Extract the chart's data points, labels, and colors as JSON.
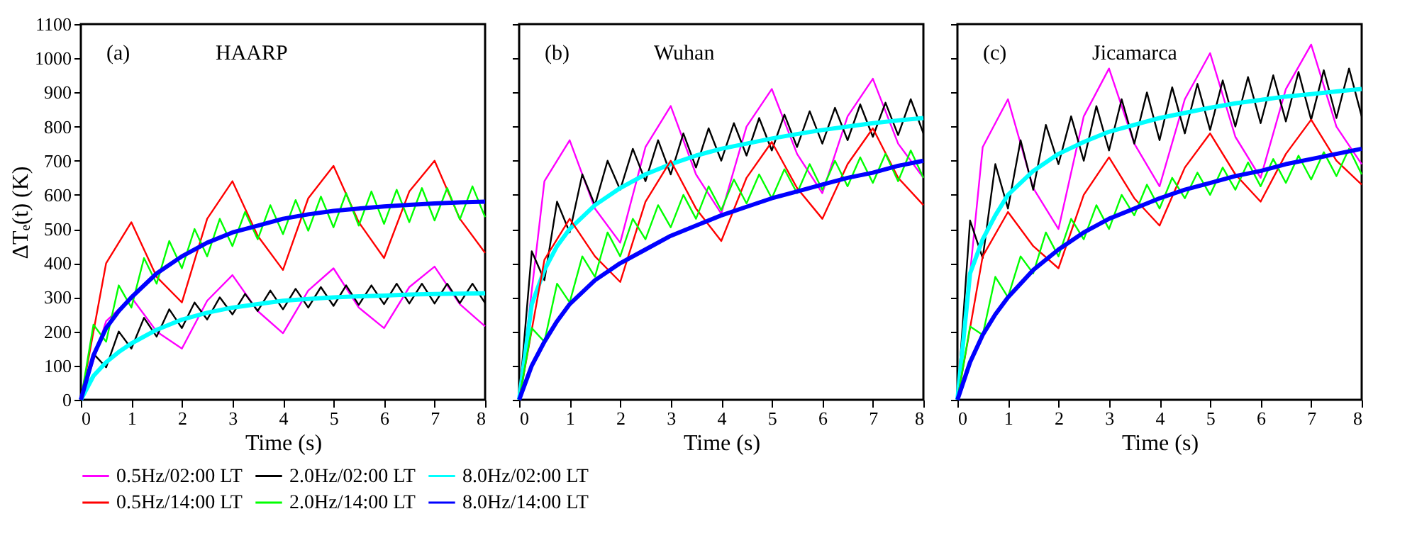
{
  "chart_data": [
    {
      "type": "line",
      "annotations": [
        "(a)",
        "HAARP"
      ],
      "xlabel": "Time (s)",
      "ylabel": "ΔTₑ(t) (K)",
      "xlim": [
        0,
        8
      ],
      "xticks": [
        0,
        1,
        2,
        3,
        4,
        5,
        6,
        7,
        8
      ],
      "ylim": [
        0,
        1100
      ],
      "yticks": [
        0,
        100,
        200,
        300,
        400,
        500,
        600,
        700,
        800,
        900,
        1000,
        1100
      ],
      "grid": false,
      "legend": "bottom right",
      "series": [
        {
          "name": "0.5Hz/02:00 LT",
          "color": "#ff00ff",
          "x": [
            0,
            0.5,
            1,
            1.5,
            2,
            2.5,
            3,
            3.5,
            4,
            4.5,
            5,
            5.5,
            6,
            6.5,
            7,
            7.5,
            8
          ],
          "values": [
            0,
            230,
            300,
            200,
            150,
            290,
            365,
            260,
            195,
            320,
            385,
            270,
            210,
            330,
            390,
            280,
            215
          ]
        },
        {
          "name": "2.0Hz/02:00 LT",
          "color": "#000000",
          "x": [
            0,
            0.25,
            0.5,
            0.75,
            1,
            1.25,
            1.5,
            1.75,
            2,
            2.25,
            2.5,
            2.75,
            3,
            3.25,
            3.5,
            3.75,
            4,
            4.25,
            4.5,
            4.75,
            5,
            5.25,
            5.5,
            5.75,
            6,
            6.25,
            6.5,
            6.75,
            7,
            7.25,
            7.5,
            7.75,
            8
          ],
          "values": [
            0,
            135,
            95,
            200,
            150,
            240,
            185,
            265,
            210,
            285,
            235,
            300,
            250,
            310,
            260,
            320,
            265,
            325,
            270,
            330,
            275,
            335,
            278,
            335,
            280,
            340,
            282,
            340,
            282,
            340,
            283,
            340,
            283
          ]
        },
        {
          "name": "8.0Hz/02:00 LT",
          "color": "#00ffff",
          "x": [
            0,
            0.25,
            0.5,
            0.75,
            1,
            1.5,
            2,
            2.5,
            3,
            3.5,
            4,
            4.5,
            5,
            5.5,
            6,
            6.5,
            7,
            7.5,
            8
          ],
          "values": [
            0,
            70,
            110,
            140,
            165,
            205,
            235,
            255,
            270,
            280,
            290,
            295,
            300,
            303,
            305,
            308,
            310,
            311,
            312
          ]
        },
        {
          "name": "0.5Hz/14:00 LT",
          "color": "#ff0000",
          "x": [
            0,
            0.5,
            1,
            1.5,
            2,
            2.5,
            3,
            3.5,
            4,
            4.5,
            5,
            5.5,
            6,
            6.5,
            7,
            7.5,
            8
          ],
          "values": [
            0,
            400,
            520,
            360,
            285,
            530,
            640,
            480,
            380,
            590,
            685,
            520,
            415,
            610,
            700,
            530,
            430
          ]
        },
        {
          "name": "2.0Hz/14:00 LT",
          "color": "#00ff00",
          "x": [
            0,
            0.25,
            0.5,
            0.75,
            1,
            1.25,
            1.5,
            1.75,
            2,
            2.25,
            2.5,
            2.75,
            3,
            3.25,
            3.5,
            3.75,
            4,
            4.25,
            4.5,
            4.75,
            5,
            5.25,
            5.5,
            5.75,
            6,
            6.25,
            6.5,
            6.75,
            7,
            7.25,
            7.5,
            7.75,
            8
          ],
          "values": [
            0,
            220,
            170,
            335,
            270,
            415,
            340,
            465,
            385,
            500,
            420,
            530,
            450,
            550,
            470,
            570,
            485,
            585,
            495,
            595,
            505,
            605,
            510,
            610,
            515,
            615,
            520,
            620,
            525,
            620,
            528,
            625,
            535
          ]
        },
        {
          "name": "8.0Hz/14:00 LT",
          "color": "#0000ff",
          "x": [
            0,
            0.25,
            0.5,
            0.75,
            1,
            1.5,
            2,
            2.5,
            3,
            3.5,
            4,
            4.5,
            5,
            5.5,
            6,
            6.5,
            7,
            7.5,
            8
          ],
          "values": [
            0,
            130,
            210,
            260,
            300,
            370,
            420,
            460,
            490,
            510,
            530,
            543,
            553,
            560,
            566,
            571,
            575,
            578,
            580
          ]
        }
      ]
    },
    {
      "type": "line",
      "annotations": [
        "(b)",
        "Wuhan"
      ],
      "xlabel": "Time (s)",
      "xlim": [
        0,
        8
      ],
      "xticks": [
        0,
        1,
        2,
        3,
        4,
        5,
        6,
        7,
        8
      ],
      "ylim": [
        0,
        1100
      ],
      "yticks": [
        0,
        100,
        200,
        300,
        400,
        500,
        600,
        700,
        800,
        900,
        1000,
        1100
      ],
      "tick_labels": "x",
      "grid": false,
      "legend": "bottom right",
      "series": [
        {
          "name": "0.5Hz/02:00 LT",
          "color": "#ff00ff",
          "x": [
            0,
            0.5,
            1,
            1.5,
            2,
            2.5,
            3,
            3.5,
            4,
            4.5,
            5,
            5.5,
            6,
            6.5,
            7,
            7.5,
            8
          ],
          "values": [
            0,
            640,
            760,
            560,
            460,
            740,
            860,
            660,
            545,
            800,
            910,
            720,
            605,
            830,
            940,
            750,
            650
          ]
        },
        {
          "name": "2.0Hz/02:00 LT",
          "color": "#000000",
          "x": [
            0,
            0.25,
            0.5,
            0.75,
            1,
            1.25,
            1.5,
            1.75,
            2,
            2.25,
            2.5,
            2.75,
            3,
            3.25,
            3.5,
            3.75,
            4,
            4.25,
            4.5,
            4.75,
            5,
            5.25,
            5.5,
            5.75,
            6,
            6.25,
            6.5,
            6.75,
            7,
            7.25,
            7.5,
            7.75,
            8
          ],
          "values": [
            0,
            435,
            350,
            580,
            490,
            660,
            570,
            700,
            615,
            735,
            640,
            760,
            660,
            780,
            680,
            795,
            700,
            810,
            715,
            825,
            730,
            835,
            740,
            845,
            750,
            855,
            760,
            865,
            770,
            870,
            775,
            880,
            780
          ]
        },
        {
          "name": "8.0Hz/02:00 LT",
          "color": "#00ffff",
          "x": [
            0,
            0.25,
            0.5,
            0.75,
            1,
            1.5,
            2,
            2.5,
            3,
            3.5,
            4,
            4.5,
            5,
            5.5,
            6,
            6.5,
            7,
            7.5,
            8
          ],
          "values": [
            0,
            280,
            380,
            450,
            500,
            570,
            620,
            660,
            690,
            715,
            735,
            750,
            765,
            778,
            790,
            800,
            810,
            818,
            825
          ]
        },
        {
          "name": "0.5Hz/14:00 LT",
          "color": "#ff0000",
          "x": [
            0,
            0.5,
            1,
            1.5,
            2,
            2.5,
            3,
            3.5,
            4,
            4.5,
            5,
            5.5,
            6,
            6.5,
            7,
            7.5,
            8
          ],
          "values": [
            0,
            410,
            530,
            420,
            345,
            580,
            700,
            560,
            465,
            650,
            755,
            620,
            530,
            690,
            795,
            650,
            570
          ]
        },
        {
          "name": "2.0Hz/14:00 LT",
          "color": "#00ff00",
          "x": [
            0,
            0.25,
            0.5,
            0.75,
            1,
            1.25,
            1.5,
            1.75,
            2,
            2.25,
            2.5,
            2.75,
            3,
            3.25,
            3.5,
            3.75,
            4,
            4.25,
            4.5,
            4.75,
            5,
            5.25,
            5.5,
            5.75,
            6,
            6.25,
            6.5,
            6.75,
            7,
            7.25,
            7.5,
            7.75,
            8
          ],
          "values": [
            0,
            210,
            170,
            340,
            285,
            420,
            360,
            490,
            420,
            530,
            470,
            570,
            505,
            600,
            530,
            625,
            555,
            645,
            575,
            660,
            590,
            675,
            605,
            690,
            615,
            700,
            625,
            710,
            635,
            720,
            640,
            730,
            650
          ]
        },
        {
          "name": "8.0Hz/14:00 LT",
          "color": "#0000ff",
          "x": [
            0,
            0.25,
            0.5,
            0.75,
            1,
            1.5,
            2,
            2.5,
            3,
            3.5,
            4,
            4.5,
            5,
            5.5,
            6,
            6.5,
            7,
            7.5,
            8
          ],
          "values": [
            0,
            100,
            170,
            230,
            280,
            350,
            400,
            440,
            480,
            510,
            540,
            565,
            590,
            610,
            630,
            650,
            665,
            685,
            700
          ]
        }
      ]
    },
    {
      "type": "line",
      "annotations": [
        "(c)",
        "Jicamarca"
      ],
      "xlabel": "Time (s)",
      "xlim": [
        0,
        8
      ],
      "xticks": [
        0,
        1,
        2,
        3,
        4,
        5,
        6,
        7,
        8
      ],
      "ylim": [
        0,
        1100
      ],
      "yticks": [
        0,
        100,
        200,
        300,
        400,
        500,
        600,
        700,
        800,
        900,
        1000,
        1100
      ],
      "tick_labels": "x",
      "grid": false,
      "legend": "bottom right",
      "series": [
        {
          "name": "0.5Hz/02:00 LT",
          "color": "#ff00ff",
          "x": [
            0,
            0.5,
            1,
            1.5,
            2,
            2.5,
            3,
            3.5,
            4,
            4.5,
            5,
            5.5,
            6,
            6.5,
            7,
            7.5,
            8
          ],
          "values": [
            0,
            740,
            880,
            620,
            500,
            830,
            970,
            750,
            625,
            880,
            1015,
            770,
            650,
            910,
            1040,
            800,
            690
          ]
        },
        {
          "name": "2.0Hz/02:00 LT",
          "color": "#000000",
          "x": [
            0,
            0.25,
            0.5,
            0.75,
            1,
            1.25,
            1.5,
            1.75,
            2,
            2.25,
            2.5,
            2.75,
            3,
            3.25,
            3.5,
            3.75,
            4,
            4.25,
            4.5,
            4.75,
            5,
            5.25,
            5.5,
            5.75,
            6,
            6.25,
            6.5,
            6.75,
            7,
            7.25,
            7.5,
            7.75,
            8
          ],
          "values": [
            0,
            525,
            415,
            690,
            560,
            760,
            615,
            805,
            690,
            830,
            700,
            860,
            730,
            880,
            750,
            900,
            760,
            915,
            780,
            925,
            790,
            935,
            800,
            945,
            810,
            950,
            815,
            960,
            820,
            965,
            825,
            970,
            830
          ]
        },
        {
          "name": "8.0Hz/02:00 LT",
          "color": "#00ffff",
          "x": [
            0,
            0.25,
            0.5,
            0.75,
            1,
            1.5,
            2,
            2.5,
            3,
            3.5,
            4,
            4.5,
            5,
            5.5,
            6,
            6.5,
            7,
            7.5,
            8
          ],
          "values": [
            0,
            370,
            470,
            540,
            600,
            670,
            720,
            755,
            785,
            805,
            825,
            840,
            855,
            868,
            878,
            888,
            895,
            903,
            910
          ]
        },
        {
          "name": "0.5Hz/14:00 LT",
          "color": "#ff0000",
          "x": [
            0,
            0.5,
            1,
            1.5,
            2,
            2.5,
            3,
            3.5,
            4,
            4.5,
            5,
            5.5,
            6,
            6.5,
            7,
            7.5,
            8
          ],
          "values": [
            0,
            420,
            550,
            450,
            385,
            600,
            710,
            590,
            510,
            680,
            780,
            660,
            580,
            720,
            820,
            700,
            630
          ]
        },
        {
          "name": "2.0Hz/14:00 LT",
          "color": "#00ff00",
          "x": [
            0,
            0.25,
            0.5,
            0.75,
            1,
            1.25,
            1.5,
            1.75,
            2,
            2.25,
            2.5,
            2.75,
            3,
            3.25,
            3.5,
            3.75,
            4,
            4.25,
            4.5,
            4.75,
            5,
            5.25,
            5.5,
            5.75,
            6,
            6.25,
            6.5,
            6.75,
            7,
            7.25,
            7.5,
            7.75,
            8
          ],
          "values": [
            0,
            215,
            190,
            360,
            300,
            420,
            370,
            490,
            420,
            530,
            470,
            570,
            500,
            600,
            540,
            630,
            560,
            650,
            590,
            665,
            600,
            680,
            615,
            695,
            625,
            705,
            635,
            715,
            645,
            725,
            655,
            735,
            660
          ]
        },
        {
          "name": "8.0Hz/14:00 LT",
          "color": "#0000ff",
          "x": [
            0,
            0.25,
            0.5,
            0.75,
            1,
            1.5,
            2,
            2.5,
            3,
            3.5,
            4,
            4.5,
            5,
            5.5,
            6,
            6.5,
            7,
            7.5,
            8
          ],
          "values": [
            0,
            110,
            190,
            250,
            300,
            380,
            440,
            490,
            530,
            560,
            590,
            615,
            635,
            655,
            670,
            690,
            705,
            720,
            735
          ]
        }
      ]
    }
  ]
}
